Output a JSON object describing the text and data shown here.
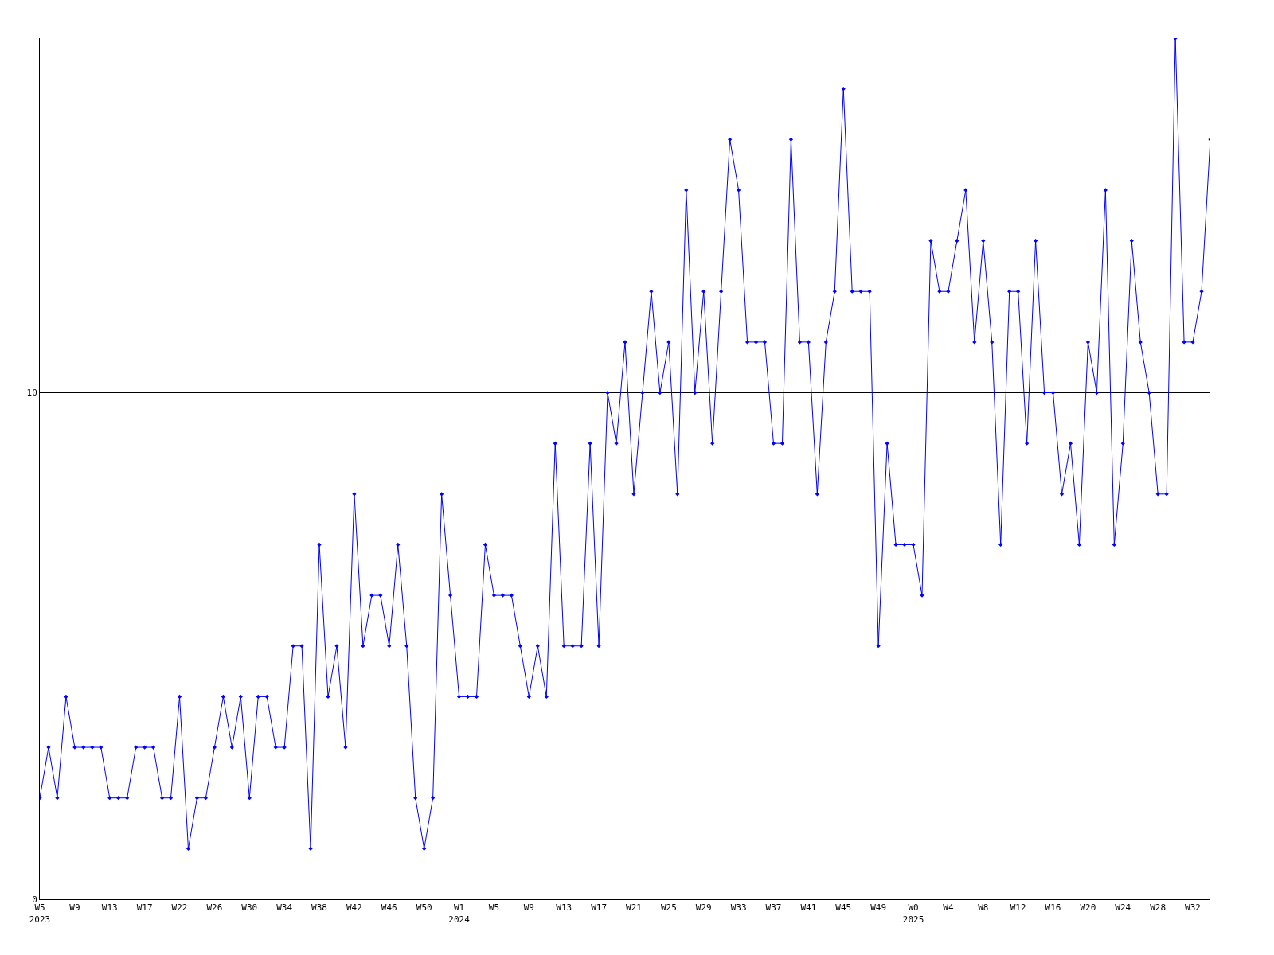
{
  "chart_data": {
    "type": "line",
    "categories": [
      "W5\n2023",
      null,
      null,
      null,
      "W9",
      null,
      null,
      null,
      "W13",
      null,
      null,
      null,
      "W17",
      null,
      null,
      null,
      "W22",
      null,
      null,
      null,
      "W26",
      null,
      null,
      null,
      "W30",
      null,
      null,
      null,
      "W34",
      null,
      null,
      null,
      "W38",
      null,
      null,
      null,
      "W42",
      null,
      null,
      null,
      "W46",
      null,
      null,
      null,
      "W50",
      null,
      null,
      null,
      "W1\n2024",
      null,
      null,
      null,
      "W5",
      null,
      null,
      null,
      "W9",
      null,
      null,
      null,
      "W13",
      null,
      null,
      null,
      "W17",
      null,
      null,
      null,
      "W21",
      null,
      null,
      null,
      "W25",
      null,
      null,
      null,
      "W29",
      null,
      null,
      null,
      "W33",
      null,
      null,
      null,
      "W37",
      null,
      null,
      null,
      "W41",
      null,
      null,
      null,
      "W45",
      null,
      null,
      null,
      "W49",
      null,
      null,
      null,
      "W0\n2025",
      null,
      null,
      null,
      "W4",
      null,
      null,
      null,
      "W8",
      null,
      null,
      null,
      "W12",
      null,
      null,
      null,
      "W16",
      null,
      null,
      null,
      "W20",
      null,
      null,
      null,
      "W24",
      null,
      null,
      null,
      "W28",
      null,
      null,
      null,
      "W32",
      null,
      null
    ],
    "series": [
      {
        "color": "#0000ff",
        "values": [
          2,
          3,
          2,
          4,
          3,
          3,
          3,
          3,
          2,
          2,
          2,
          3,
          3,
          3,
          2,
          2,
          4,
          1,
          2,
          2,
          3,
          4,
          3,
          4,
          2,
          4,
          4,
          3,
          3,
          5,
          5,
          1,
          7,
          4,
          5,
          3,
          8,
          5,
          6,
          6,
          5,
          7,
          5,
          2,
          1,
          2,
          8,
          6,
          4,
          4,
          4,
          7,
          6,
          6,
          6,
          5,
          4,
          5,
          4,
          9,
          5,
          5,
          5,
          9,
          5,
          10,
          9,
          11,
          8,
          10,
          12,
          10,
          11,
          8,
          14,
          10,
          12,
          9,
          12,
          15,
          14,
          11,
          11,
          11,
          9,
          9,
          15,
          11,
          11,
          8,
          11,
          12,
          16,
          12,
          12,
          12,
          5,
          9,
          7,
          7,
          7,
          6,
          13,
          12,
          12,
          13,
          14,
          11,
          13,
          11,
          7,
          12,
          12,
          9,
          13,
          10,
          10,
          8,
          9,
          7,
          11,
          10,
          14,
          7,
          9,
          13,
          11,
          10,
          8,
          8,
          17,
          11,
          11,
          12,
          15
        ]
      }
    ],
    "ylim": [
      0,
      17
    ],
    "yticks": [
      0,
      10
    ],
    "grid": "y",
    "marker": "diamond",
    "line_style": "solid",
    "legend": false
  }
}
